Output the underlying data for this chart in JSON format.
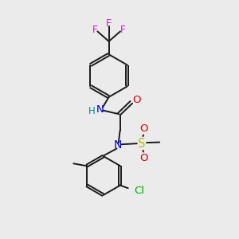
{
  "bg_color": "#ebebeb",
  "bond_color": "#1a1a1a",
  "bond_width": 1.4,
  "atom_colors": {
    "F": "#ee00ee",
    "N": "#0000dd",
    "H": "#008888",
    "O": "#dd0000",
    "S": "#bbbb00",
    "Cl": "#00aa00",
    "C": "#1a1a1a"
  },
  "font_size": 8.5,
  "fig_size": [
    3.0,
    3.0
  ],
  "dpi": 100,
  "xlim": [
    0,
    10
  ],
  "ylim": [
    0,
    10
  ]
}
